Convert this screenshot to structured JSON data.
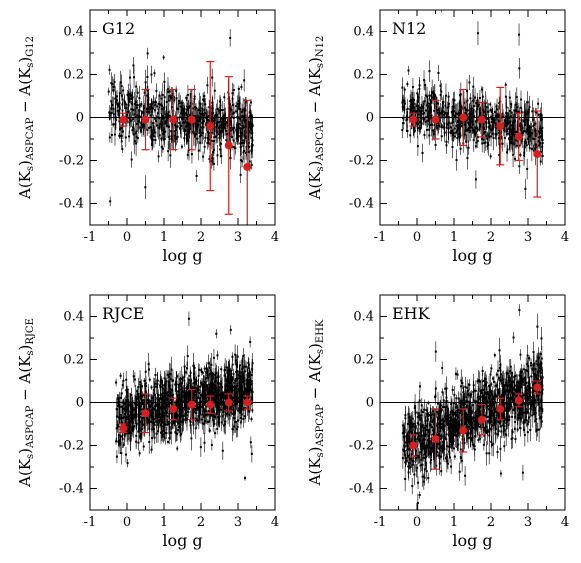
{
  "chart_data": [
    {
      "type": "scatter",
      "panel_label": "G12",
      "xlabel": "log g",
      "ylabel": {
        "a": "A(K",
        "sub1": "s",
        "b": ")",
        "sub2": "ASPCAP",
        "c": " − A(K",
        "sub3": "s",
        "d": ")",
        "sub4": "G12"
      },
      "xlim": [
        -1,
        4
      ],
      "ylim": [
        -0.5,
        0.5
      ],
      "x_ticks": [
        "-1",
        "0",
        "1",
        "2",
        "3",
        "4"
      ],
      "y_ticks": [
        "-0.4",
        "-0.2",
        "0",
        "0.2",
        "0.4"
      ],
      "reference_line_y": 0,
      "scatter_cloud": {
        "x_range": [
          -0.5,
          3.4
        ],
        "y_center": 0.0,
        "y_spread": 0.07,
        "count": 700,
        "seed": 11,
        "trend": -0.02
      },
      "binned_means": [
        {
          "x": -0.1,
          "y": -0.01,
          "err": 0.03
        },
        {
          "x": 0.5,
          "y": -0.01,
          "err": 0.14
        },
        {
          "x": 1.25,
          "y": -0.01,
          "err": 0.14
        },
        {
          "x": 1.75,
          "y": -0.01,
          "err": 0.14
        },
        {
          "x": 2.25,
          "y": -0.04,
          "err": 0.3
        },
        {
          "x": 2.75,
          "y": -0.13,
          "err": 0.32
        },
        {
          "x": 3.25,
          "y": -0.23,
          "err": 0.31
        }
      ]
    },
    {
      "type": "scatter",
      "panel_label": "N12",
      "xlabel": "log g",
      "ylabel": {
        "a": "A(K",
        "sub1": "s",
        "b": ")",
        "sub2": "ASPCAP",
        "c": " − A(K",
        "sub3": "s",
        "d": ")",
        "sub4": "N12"
      },
      "xlim": [
        -1,
        4
      ],
      "ylim": [
        -0.5,
        0.5
      ],
      "x_ticks": [
        "-1",
        "0",
        "1",
        "2",
        "3",
        "4"
      ],
      "y_ticks": [
        "-0.4",
        "-0.2",
        "0",
        "0.2",
        "0.4"
      ],
      "reference_line_y": 0,
      "scatter_cloud": {
        "x_range": [
          -0.4,
          3.4
        ],
        "y_center": 0.0,
        "y_spread": 0.06,
        "count": 650,
        "seed": 23,
        "trend": -0.03
      },
      "binned_means": [
        {
          "x": -0.1,
          "y": -0.01,
          "err": 0.03
        },
        {
          "x": 0.5,
          "y": -0.01,
          "err": 0.09
        },
        {
          "x": 1.25,
          "y": 0.0,
          "err": 0.13
        },
        {
          "x": 1.75,
          "y": -0.01,
          "err": 0.08
        },
        {
          "x": 2.25,
          "y": -0.04,
          "err": 0.18
        },
        {
          "x": 2.75,
          "y": -0.09,
          "err": 0.11
        },
        {
          "x": 3.25,
          "y": -0.17,
          "err": 0.2
        }
      ]
    },
    {
      "type": "scatter",
      "panel_label": "RJCE",
      "xlabel": "log g",
      "ylabel": {
        "a": "A(K",
        "sub1": "s",
        "b": ")",
        "sub2": "ASPCAP",
        "c": " − A(K",
        "sub3": "s",
        "d": ")",
        "sub4": "RJCE"
      },
      "xlim": [
        -1,
        4
      ],
      "ylim": [
        -0.5,
        0.5
      ],
      "x_ticks": [
        "-1",
        "0",
        "1",
        "2",
        "3",
        "4"
      ],
      "y_ticks": [
        "-0.4",
        "-0.2",
        "0",
        "0.2",
        "0.4"
      ],
      "reference_line_y": 0,
      "scatter_cloud": {
        "x_range": [
          -0.3,
          3.4
        ],
        "y_center": -0.02,
        "y_spread": 0.07,
        "count": 1200,
        "seed": 37,
        "trend": 0.035
      },
      "binned_means": [
        {
          "x": -0.1,
          "y": -0.12,
          "err": 0.02
        },
        {
          "x": 0.5,
          "y": -0.05,
          "err": 0.09
        },
        {
          "x": 1.25,
          "y": -0.03,
          "err": 0.05
        },
        {
          "x": 1.75,
          "y": -0.01,
          "err": 0.07
        },
        {
          "x": 2.25,
          "y": -0.01,
          "err": 0.04
        },
        {
          "x": 2.75,
          "y": 0.0,
          "err": 0.04
        },
        {
          "x": 3.25,
          "y": 0.0,
          "err": 0.03
        }
      ]
    },
    {
      "type": "scatter",
      "panel_label": "EHK",
      "xlabel": "log g",
      "ylabel": {
        "a": "A(K",
        "sub1": "s",
        "b": ")",
        "sub2": "ASPCAP",
        "c": " − A(K",
        "sub3": "s",
        "d": ")",
        "sub4": "EHK"
      },
      "xlim": [
        -1,
        4
      ],
      "ylim": [
        -0.5,
        0.5
      ],
      "x_ticks": [
        "-1",
        "0",
        "1",
        "2",
        "3",
        "4"
      ],
      "y_ticks": [
        "-0.4",
        "-0.2",
        "0",
        "0.2",
        "0.4"
      ],
      "reference_line_y": 0,
      "scatter_cloud": {
        "x_range": [
          -0.4,
          3.4
        ],
        "y_center": -0.1,
        "y_spread": 0.08,
        "count": 1200,
        "seed": 53,
        "trend": 0.07
      },
      "binned_means": [
        {
          "x": -0.1,
          "y": -0.2,
          "err": 0.05
        },
        {
          "x": 0.5,
          "y": -0.17,
          "err": 0.14
        },
        {
          "x": 1.25,
          "y": -0.13,
          "err": 0.1
        },
        {
          "x": 1.75,
          "y": -0.08,
          "err": 0.07
        },
        {
          "x": 2.25,
          "y": -0.03,
          "err": 0.05
        },
        {
          "x": 2.75,
          "y": 0.01,
          "err": 0.03
        },
        {
          "x": 3.25,
          "y": 0.07,
          "err": 0.03
        }
      ]
    }
  ],
  "colors": {
    "points": "#000000",
    "binned": "#d42020",
    "axes": "#000000",
    "background": "#ffffff"
  }
}
